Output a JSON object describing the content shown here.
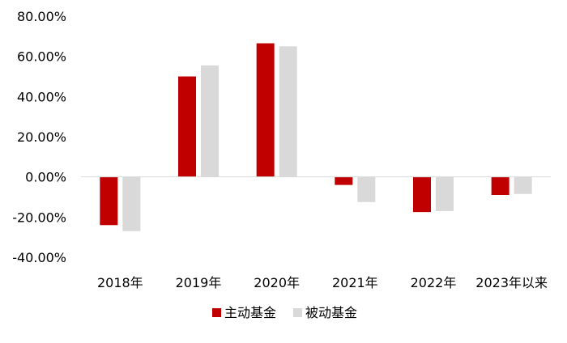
{
  "chart_data": {
    "type": "bar",
    "categories": [
      "2018年",
      "2019年",
      "2020年",
      "2021年",
      "2022年",
      "2023年以来"
    ],
    "series": [
      {
        "name": "主动基金",
        "color": "#C00000",
        "values": [
          -24.0,
          50.0,
          66.5,
          -4.0,
          -17.5,
          -9.0
        ]
      },
      {
        "name": "被动基金",
        "color": "#D9D9D9",
        "values": [
          -27.0,
          55.5,
          65.0,
          -12.5,
          -17.0,
          -8.5
        ]
      }
    ],
    "ylim": [
      -40,
      80
    ],
    "yticks": [
      80,
      60,
      40,
      20,
      0,
      -20,
      -40
    ],
    "ytick_labels": [
      "80.00%",
      "60.00%",
      "40.00%",
      "20.00%",
      "0.00%",
      "-20.00%",
      "-40.00%"
    ],
    "legend_position": "bottom",
    "grid": false,
    "title": "",
    "xlabel": "",
    "ylabel": ""
  }
}
